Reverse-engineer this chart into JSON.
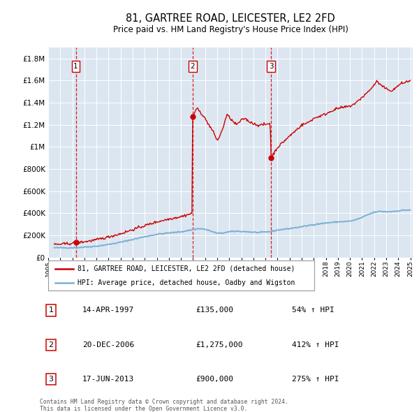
{
  "title": "81, GARTREE ROAD, LEICESTER, LE2 2FD",
  "subtitle": "Price paid vs. HM Land Registry's House Price Index (HPI)",
  "bg_color": "#dce6f1",
  "hpi_line_color": "#7bafd4",
  "price_line_color": "#cc0000",
  "ylim": [
    0,
    1900000
  ],
  "xlim_start": 1995.5,
  "xlim_end": 2025.2,
  "yticks": [
    0,
    200000,
    400000,
    600000,
    800000,
    1000000,
    1200000,
    1400000,
    1600000,
    1800000
  ],
  "ytick_labels": [
    "£0",
    "£200K",
    "£400K",
    "£600K",
    "£800K",
    "£1M",
    "£1.2M",
    "£1.4M",
    "£1.6M",
    "£1.8M"
  ],
  "xtick_years": [
    1995,
    1996,
    1997,
    1998,
    1999,
    2000,
    2001,
    2002,
    2003,
    2004,
    2005,
    2006,
    2007,
    2008,
    2009,
    2010,
    2011,
    2012,
    2013,
    2014,
    2015,
    2016,
    2017,
    2018,
    2019,
    2020,
    2021,
    2022,
    2023,
    2024,
    2025
  ],
  "sale_markers": [
    {
      "year": 1997.29,
      "price": 135000,
      "label": "1"
    },
    {
      "year": 2006.97,
      "price": 1275000,
      "label": "2"
    },
    {
      "year": 2013.46,
      "price": 900000,
      "label": "3"
    }
  ],
  "vline_years": [
    1997.29,
    2006.97,
    2013.46
  ],
  "legend_red_label": "81, GARTREE ROAD, LEICESTER, LE2 2FD (detached house)",
  "legend_blue_label": "HPI: Average price, detached house, Oadby and Wigston",
  "table_rows": [
    {
      "num": "1",
      "date": "14-APR-1997",
      "price": "£135,000",
      "change": "54% ↑ HPI"
    },
    {
      "num": "2",
      "date": "20-DEC-2006",
      "price": "£1,275,000",
      "change": "412% ↑ HPI"
    },
    {
      "num": "3",
      "date": "17-JUN-2013",
      "price": "£900,000",
      "change": "275% ↑ HPI"
    }
  ],
  "footer_line1": "Contains HM Land Registry data © Crown copyright and database right 2024.",
  "footer_line2": "This data is licensed under the Open Government Licence v3.0."
}
